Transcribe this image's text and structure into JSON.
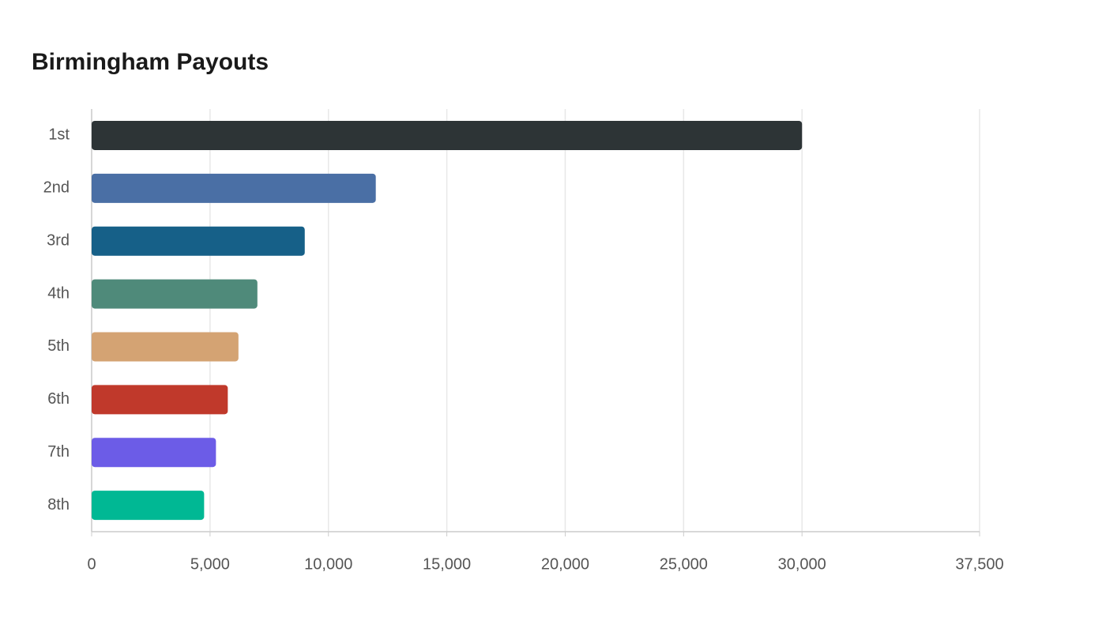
{
  "chart_data": {
    "type": "bar",
    "orientation": "horizontal",
    "title": "Birmingham Payouts",
    "categories": [
      "1st",
      "2nd",
      "3rd",
      "4th",
      "5th",
      "6th",
      "7th",
      "8th"
    ],
    "values": [
      30000,
      12000,
      9000,
      7000,
      6200,
      5750,
      5250,
      4750
    ],
    "colors": [
      "#2d3436",
      "#4a6fa5",
      "#166088",
      "#4f8a7a",
      "#d4a373",
      "#c0392b",
      "#6c5ce7",
      "#00b894"
    ],
    "xlim": [
      0,
      37500
    ],
    "xticks": [
      0,
      {
        "value": 5000,
        "label": "5,000"
      },
      {
        "value": 10000,
        "label": "10,000"
      },
      {
        "value": 15000,
        "label": "15,000"
      },
      {
        "value": 20000,
        "label": "20,000"
      },
      {
        "value": 25000,
        "label": "25,000"
      },
      {
        "value": 30000,
        "label": "30,000"
      },
      {
        "value": 37500,
        "label": "37,500"
      }
    ],
    "grid": true
  }
}
